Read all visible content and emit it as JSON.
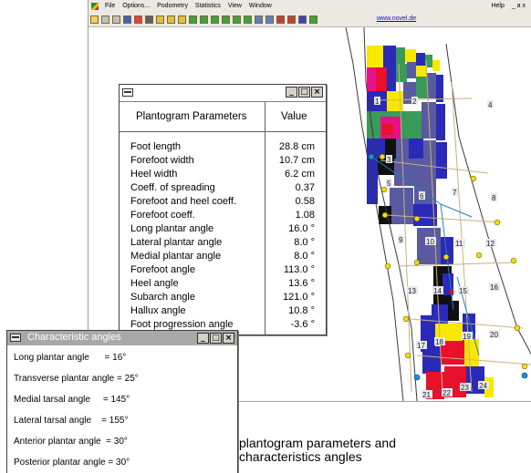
{
  "app": {
    "menu": [
      "File",
      "Options...",
      "Podometry",
      "Statistics",
      "View",
      "Window"
    ],
    "menu_right": [
      "Help",
      "_ a x"
    ],
    "link": "www.novel.de",
    "toolbar_icons": [
      "open-icon",
      "print-icon",
      "print-preview-icon",
      "save-icon",
      "filter-icon",
      "grid-icon",
      "compare-a-icon",
      "compare-b-icon",
      "compare-c-icon",
      "foot-left-icon",
      "foot-right-icon",
      "foot-both-icon",
      "foot-pair-icon",
      "foot-sum-icon",
      "foot-diff-icon",
      "pdf-icon",
      "pdf-icon-2",
      "export-icon",
      "export-icon-2",
      "report-icon",
      "novel-logo-icon"
    ]
  },
  "plantogram": {
    "header_name": "Plantogram Parameters",
    "header_value": "Value",
    "rows": [
      {
        "name": "Foot length",
        "value": "28.8 cm"
      },
      {
        "name": "Forefoot width",
        "value": "10.7 cm"
      },
      {
        "name": "Heel width",
        "value": "6.2 cm"
      },
      {
        "name": "Coeff. of spreading",
        "value": "0.37"
      },
      {
        "name": "Forefoot and heel coeff.",
        "value": "0.58"
      },
      {
        "name": "Forefoot coeff.",
        "value": "1.08"
      },
      {
        "name": "Long plantar angle",
        "value": "16.0 °"
      },
      {
        "name": "Lateral plantar angle",
        "value": "8.0 °"
      },
      {
        "name": "Medial plantar angle",
        "value": "8.0 °"
      },
      {
        "name": "Forefoot angle",
        "value": "113.0 °"
      },
      {
        "name": "Heel angle",
        "value": "13.6 °"
      },
      {
        "name": "Subarch angle",
        "value": "121.0 °"
      },
      {
        "name": "Hallux angle",
        "value": "10.8 °"
      },
      {
        "name": "Foot progression angle",
        "value": "-3.6 °"
      }
    ]
  },
  "characteristic": {
    "title": "Characteristic angles",
    "rows": [
      "Long plantar angle      = 16°",
      "Transverse plantar angle = 25°",
      "Medial tarsal angle     = 145°",
      "Lateral tarsal angle    = 155°",
      "Anterior plantar angle  = 30°",
      "Posterior plantar angle = 30°"
    ]
  },
  "foot_labels": [
    "1",
    "2",
    "3",
    "4",
    "5",
    "6",
    "7",
    "8",
    "9",
    "10",
    "11",
    "12",
    "13",
    "14",
    "15",
    "16",
    "17",
    "18",
    "19",
    "20",
    "21",
    "22",
    "23",
    "24"
  ],
  "caption": {
    "line1": "plantogram parameters and",
    "line2": "characteristics angles"
  },
  "colors": {
    "window_chrome": "#ece9e3",
    "title_inactive": "#a8a8a8",
    "pressure_red": "#e8102a",
    "pressure_yellow": "#f8e800",
    "pressure_green": "#3a9a5a",
    "pressure_blue": "#2a2ab8",
    "pressure_slate": "#5a5aa0",
    "pressure_magenta": "#e8108a",
    "node_yellow": "#f0e000",
    "node_blue": "#1e90d0"
  }
}
